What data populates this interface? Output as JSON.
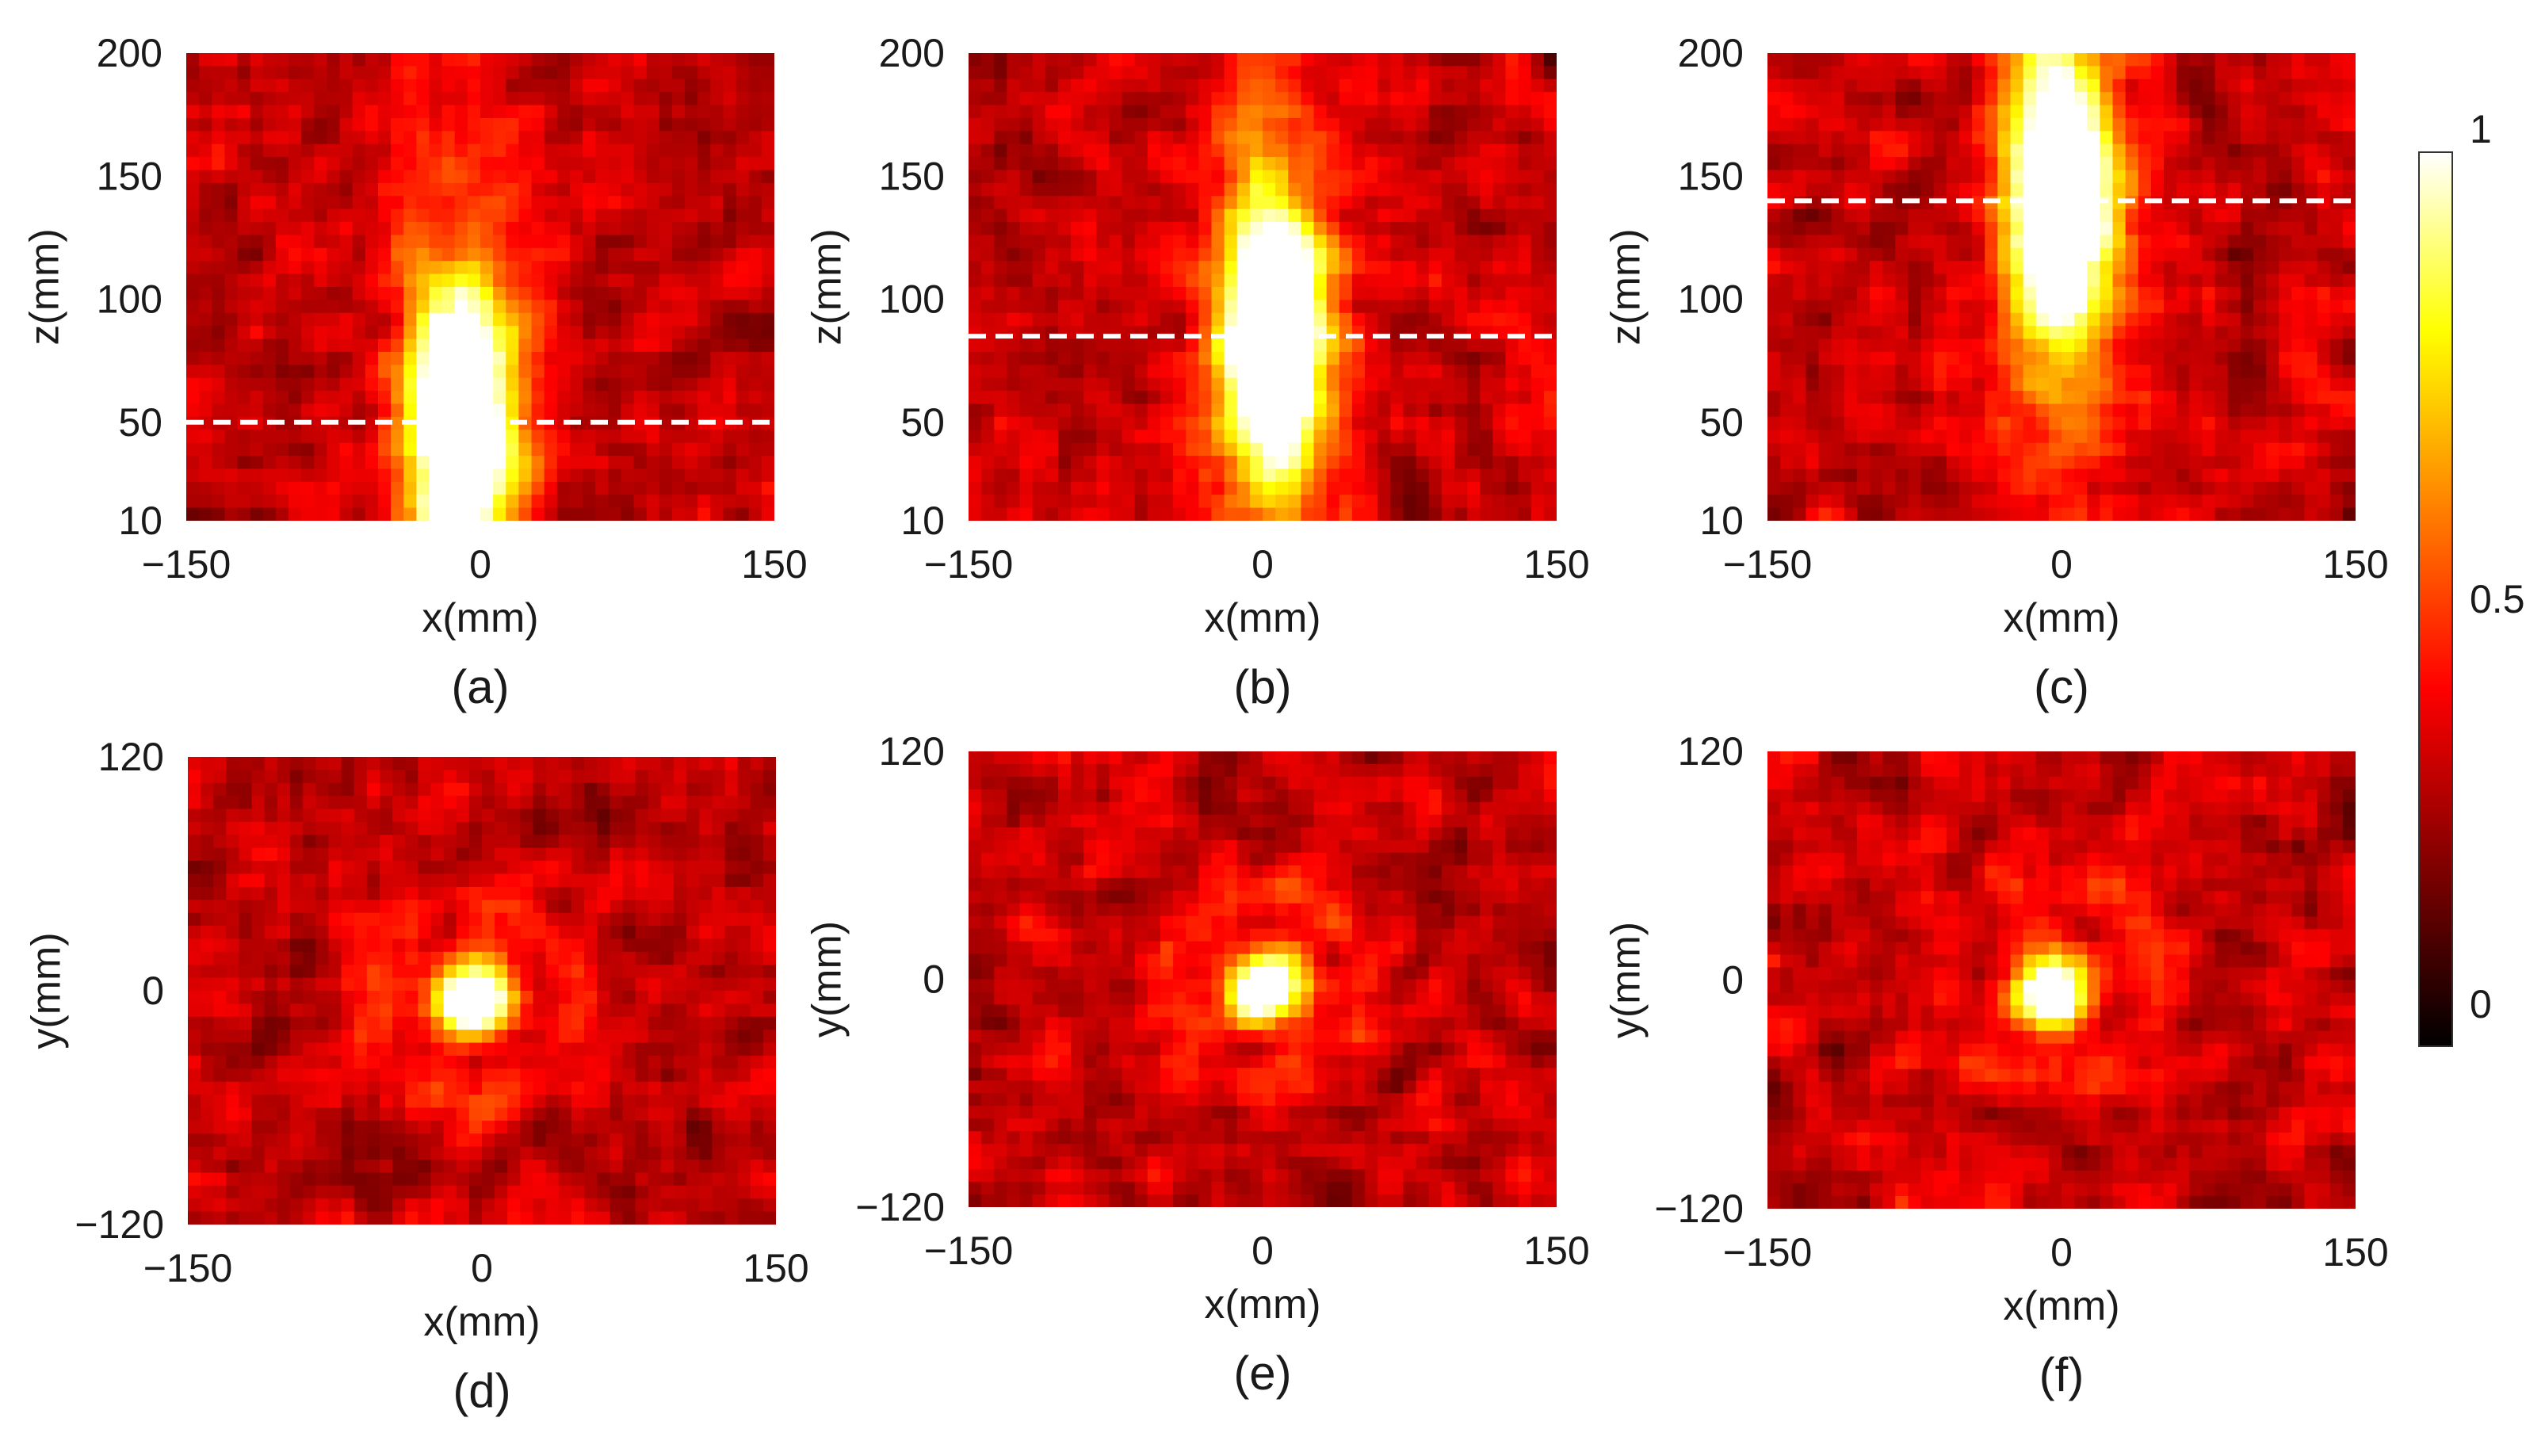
{
  "chart_data": [
    {
      "panel_label": "(a)",
      "type": "heatmap",
      "plane": "xz",
      "xlabel": "x(mm)",
      "ylabel": "z(mm)",
      "xlim": [
        -150,
        150
      ],
      "ylim": [
        10,
        200
      ],
      "x_ticks": [
        "−150",
        "0",
        "150"
      ],
      "x_tick_values": [
        -150,
        0,
        150
      ],
      "y_ticks": [
        "200",
        "150",
        "100",
        "50",
        "10"
      ],
      "y_tick_values": [
        200,
        150,
        100,
        50,
        10
      ],
      "hotspot": {
        "x": -10,
        "z": 50,
        "intensity": 1.0,
        "shape": "vertical streak"
      },
      "dashed_line_z": 50,
      "colormap": "hot",
      "clim": [
        0,
        1
      ]
    },
    {
      "panel_label": "(b)",
      "type": "heatmap",
      "plane": "xz",
      "xlabel": "x(mm)",
      "ylabel": "z(mm)",
      "xlim": [
        -150,
        150
      ],
      "ylim": [
        10,
        200
      ],
      "x_ticks": [
        "−150",
        "0",
        "150"
      ],
      "x_tick_values": [
        -150,
        0,
        150
      ],
      "y_ticks": [
        "200",
        "150",
        "100",
        "50",
        "10"
      ],
      "y_tick_values": [
        200,
        150,
        100,
        50,
        10
      ],
      "hotspot": {
        "x": 5,
        "z": 85,
        "intensity": 1.0,
        "shape": "vertical streak"
      },
      "dashed_line_z": 85,
      "colormap": "hot",
      "clim": [
        0,
        1
      ]
    },
    {
      "panel_label": "(c)",
      "type": "heatmap",
      "plane": "xz",
      "xlabel": "x(mm)",
      "ylabel": "z(mm)",
      "xlim": [
        -150,
        150
      ],
      "ylim": [
        10,
        200
      ],
      "x_ticks": [
        "−150",
        "0",
        "150"
      ],
      "x_tick_values": [
        -150,
        0,
        150
      ],
      "y_ticks": [
        "200",
        "150",
        "100",
        "50",
        "10"
      ],
      "y_tick_values": [
        200,
        150,
        100,
        50,
        10
      ],
      "hotspot": {
        "x": 0,
        "z": 140,
        "intensity": 1.0,
        "shape": "vertical streak"
      },
      "dashed_line_z": 140,
      "colormap": "hot",
      "clim": [
        0,
        1
      ]
    },
    {
      "panel_label": "(d)",
      "type": "heatmap",
      "plane": "xy",
      "xlabel": "x(mm)",
      "ylabel": "y(mm)",
      "xlim": [
        -150,
        150
      ],
      "ylim": [
        -120,
        120
      ],
      "x_ticks": [
        "−150",
        "0",
        "150"
      ],
      "x_tick_values": [
        -150,
        0,
        150
      ],
      "y_ticks": [
        "120",
        "0",
        "−120"
      ],
      "y_tick_values": [
        120,
        0,
        -120
      ],
      "hotspot": {
        "x": -5,
        "y": -5,
        "intensity": 1.0,
        "shape": "spot"
      },
      "colormap": "hot",
      "clim": [
        0,
        1
      ]
    },
    {
      "panel_label": "(e)",
      "type": "heatmap",
      "plane": "xy",
      "xlabel": "x(mm)",
      "ylabel": "y(mm)",
      "xlim": [
        -150,
        150
      ],
      "ylim": [
        -120,
        120
      ],
      "x_ticks": [
        "−150",
        "0",
        "150"
      ],
      "x_tick_values": [
        -150,
        0,
        150
      ],
      "y_ticks": [
        "120",
        "0",
        "−120"
      ],
      "y_tick_values": [
        120,
        0,
        -120
      ],
      "hotspot": {
        "x": 0,
        "y": -5,
        "intensity": 1.0,
        "shape": "spot"
      },
      "colormap": "hot",
      "clim": [
        0,
        1
      ]
    },
    {
      "panel_label": "(f)",
      "type": "heatmap",
      "plane": "xy",
      "xlabel": "x(mm)",
      "ylabel": "y(mm)",
      "xlim": [
        -150,
        150
      ],
      "ylim": [
        -120,
        120
      ],
      "x_ticks": [
        "−150",
        "0",
        "150"
      ],
      "x_tick_values": [
        -150,
        0,
        150
      ],
      "y_ticks": [
        "120",
        "0",
        "−120"
      ],
      "y_tick_values": [
        120,
        0,
        -120
      ],
      "hotspot": {
        "x": -5,
        "y": -5,
        "intensity": 1.0,
        "shape": "spot"
      },
      "colormap": "hot",
      "clim": [
        0,
        1
      ]
    }
  ],
  "colorbar": {
    "colormap": "hot",
    "range": [
      0,
      1
    ],
    "tick_labels": [
      "1",
      "0.5",
      "0"
    ],
    "tick_values": [
      1,
      0.5,
      0
    ]
  },
  "colors": {
    "background": "#ffffff",
    "text": "#1a1a1a",
    "dashed_line": "#ffffff"
  }
}
